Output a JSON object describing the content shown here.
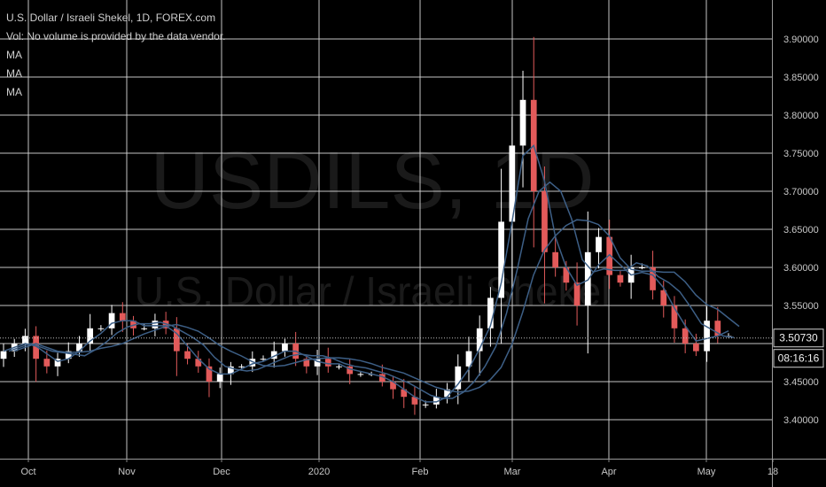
{
  "legend": {
    "symbol_line": "U.S. Dollar / Israeli Shekel, 1D, FOREX.com",
    "volume_line": "Vol: No volume is provided by the data vendor.",
    "ma1": "MA",
    "ma2": "MA",
    "ma3": "MA"
  },
  "watermark": {
    "symbol": "USDILS, 1D",
    "description": "U.S. Dollar / Israeli Shekel"
  },
  "price_badge": "3.50730",
  "timer_badge": "08:16:16",
  "colors": {
    "background": "#000000",
    "grid": "#d8d8d8",
    "up_candle": "#ffffff",
    "down_candle": "#e25a5a",
    "ma_line": "#3d5f86",
    "price_line": "#bdbdbd"
  },
  "chart_data": {
    "type": "candlestick",
    "y_ticks": [
      "3.90000",
      "3.85000",
      "3.80000",
      "3.75000",
      "3.70000",
      "3.65000",
      "3.60000",
      "3.55000",
      "3.50000",
      "3.45000",
      "3.40000"
    ],
    "x_ticks": [
      "Oct",
      "Nov",
      "Dec",
      "2020",
      "Feb",
      "Mar",
      "Apr",
      "May",
      "18"
    ],
    "ylim": [
      3.38,
      3.92
    ],
    "last_price": 3.5073,
    "grid": true,
    "series": [
      {
        "name": "USDILS",
        "values": [
          3.49,
          3.5,
          3.51,
          3.48,
          3.47,
          3.48,
          3.49,
          3.5,
          3.52,
          3.52,
          3.54,
          3.53,
          3.52,
          3.52,
          3.53,
          3.52,
          3.49,
          3.48,
          3.47,
          3.45,
          3.46,
          3.47,
          3.47,
          3.48,
          3.48,
          3.49,
          3.5,
          3.48,
          3.47,
          3.48,
          3.47,
          3.47,
          3.46,
          3.46,
          3.46,
          3.45,
          3.44,
          3.43,
          3.42,
          3.42,
          3.43,
          3.44,
          3.47,
          3.49,
          3.52,
          3.56,
          3.66,
          3.76,
          3.82,
          3.7,
          3.62,
          3.6,
          3.58,
          3.55,
          3.62,
          3.64,
          3.59,
          3.58,
          3.6,
          3.6,
          3.57,
          3.55,
          3.52,
          3.5,
          3.49,
          3.53,
          3.51,
          3.51
        ]
      }
    ]
  }
}
